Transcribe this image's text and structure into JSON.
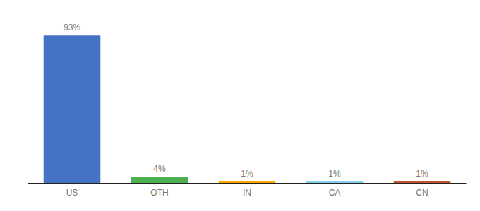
{
  "chart_data": {
    "type": "bar",
    "categories": [
      "US",
      "OTH",
      "IN",
      "CA",
      "CN"
    ],
    "values": [
      93,
      4,
      1,
      1,
      1
    ],
    "value_labels": [
      "93%",
      "4%",
      "1%",
      "1%",
      "1%"
    ],
    "colors": [
      "#4472C4",
      "#4CAF50",
      "#FFA500",
      "#87CEEB",
      "#C0522D"
    ],
    "ylim": [
      0,
      102
    ],
    "grid": false,
    "data_labels": true,
    "tick_labels": "x"
  }
}
